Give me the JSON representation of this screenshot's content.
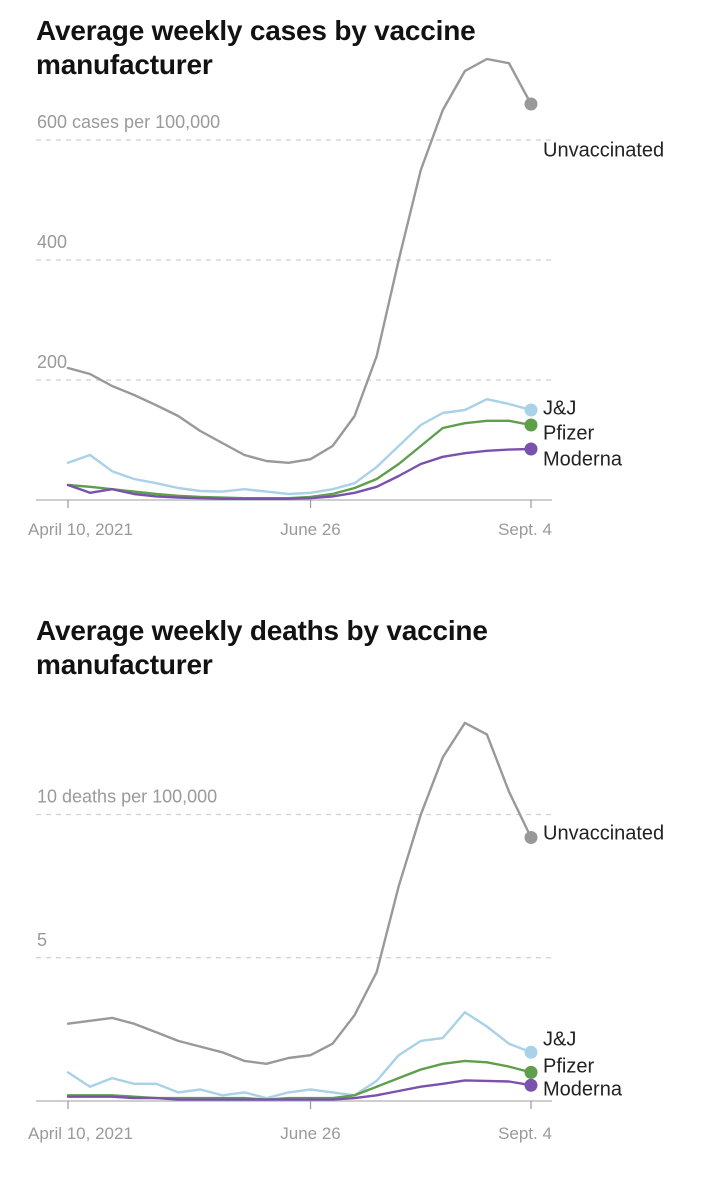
{
  "chart_data": [
    {
      "type": "line",
      "title": "Average weekly cases by vaccine manufacturer",
      "ylim": [
        0,
        700
      ],
      "y_ticks": [
        {
          "value": 0,
          "label": ""
        },
        {
          "value": 200,
          "label": "200"
        },
        {
          "value": 400,
          "label": "400"
        },
        {
          "value": 600,
          "label": "600 cases per 100,000"
        }
      ],
      "x_ticks": [
        {
          "week": 0,
          "label": "April 10, 2021"
        },
        {
          "week": 11,
          "label": "June 26"
        },
        {
          "week": 21,
          "label": "Sept. 4"
        }
      ],
      "x": [
        "April 10, 2021",
        "April 17, 2021",
        "April 24, 2021",
        "May 1, 2021",
        "May 8, 2021",
        "May 15, 2021",
        "May 22, 2021",
        "May 29, 2021",
        "June 5, 2021",
        "June 12, 2021",
        "June 19, 2021",
        "June 26, 2021",
        "July 3, 2021",
        "July 10, 2021",
        "July 17, 2021",
        "July 24, 2021",
        "July 31, 2021",
        "Aug. 7, 2021",
        "Aug. 14, 2021",
        "Aug. 21, 2021",
        "Aug. 28, 2021",
        "Sept. 4, 2021"
      ],
      "grid": "dashed horizontal",
      "series": [
        {
          "name": "Unvaccinated",
          "color": "#999999",
          "values": [
            220,
            210,
            190,
            175,
            158,
            140,
            115,
            95,
            75,
            65,
            62,
            68,
            90,
            140,
            240,
            400,
            550,
            650,
            715,
            735,
            728,
            660
          ]
        },
        {
          "name": "J&J",
          "color": "#a9d1e8",
          "values": [
            62,
            75,
            48,
            35,
            28,
            20,
            15,
            14,
            18,
            14,
            10,
            12,
            18,
            28,
            55,
            90,
            125,
            145,
            150,
            168,
            160,
            150
          ]
        },
        {
          "name": "Pfizer",
          "color": "#5f9e4b",
          "values": [
            25,
            22,
            18,
            14,
            10,
            7,
            5,
            4,
            3,
            3,
            3,
            5,
            10,
            20,
            35,
            60,
            90,
            120,
            128,
            132,
            132,
            125
          ]
        },
        {
          "name": "Moderna",
          "color": "#7a52ad",
          "values": [
            25,
            12,
            18,
            10,
            6,
            4,
            3,
            2,
            2,
            2,
            2,
            3,
            6,
            12,
            22,
            40,
            60,
            72,
            78,
            82,
            84,
            85
          ]
        }
      ]
    },
    {
      "type": "line",
      "title": "Average weekly deaths by vaccine manufacturer",
      "ylim": [
        0,
        14
      ],
      "y_ticks": [
        {
          "value": 0,
          "label": ""
        },
        {
          "value": 5,
          "label": "5"
        },
        {
          "value": 10,
          "label": "10 deaths per 100,000"
        }
      ],
      "x_ticks": [
        {
          "week": 0,
          "label": "April 10, 2021"
        },
        {
          "week": 11,
          "label": "June 26"
        },
        {
          "week": 21,
          "label": "Sept. 4"
        }
      ],
      "x": [
        "April 10, 2021",
        "April 17, 2021",
        "April 24, 2021",
        "May 1, 2021",
        "May 8, 2021",
        "May 15, 2021",
        "May 22, 2021",
        "May 29, 2021",
        "June 5, 2021",
        "June 12, 2021",
        "June 19, 2021",
        "June 26, 2021",
        "July 3, 2021",
        "July 10, 2021",
        "July 17, 2021",
        "July 24, 2021",
        "July 31, 2021",
        "Aug. 7, 2021",
        "Aug. 14, 2021",
        "Aug. 21, 2021",
        "Aug. 28, 2021",
        "Sept. 4, 2021"
      ],
      "grid": "dashed horizontal",
      "series": [
        {
          "name": "Unvaccinated",
          "color": "#999999",
          "values": [
            2.7,
            2.8,
            2.9,
            2.7,
            2.4,
            2.1,
            1.9,
            1.7,
            1.4,
            1.3,
            1.5,
            1.6,
            2.0,
            3.0,
            4.5,
            7.5,
            10.0,
            12.0,
            13.2,
            12.8,
            10.8,
            9.2
          ]
        },
        {
          "name": "J&J",
          "color": "#a9d1e8",
          "values": [
            1.0,
            0.5,
            0.8,
            0.6,
            0.6,
            0.3,
            0.4,
            0.2,
            0.3,
            0.1,
            0.3,
            0.4,
            0.3,
            0.2,
            0.7,
            1.6,
            2.1,
            2.2,
            3.1,
            2.6,
            2.0,
            1.7
          ]
        },
        {
          "name": "Pfizer",
          "color": "#5f9e4b",
          "values": [
            0.2,
            0.2,
            0.2,
            0.15,
            0.1,
            0.1,
            0.1,
            0.1,
            0.1,
            0.05,
            0.1,
            0.1,
            0.1,
            0.2,
            0.5,
            0.8,
            1.1,
            1.3,
            1.4,
            1.35,
            1.2,
            1.0
          ]
        },
        {
          "name": "Moderna",
          "color": "#7a52ad",
          "values": [
            0.15,
            0.15,
            0.15,
            0.1,
            0.1,
            0.05,
            0.05,
            0.05,
            0.05,
            0.05,
            0.05,
            0.05,
            0.05,
            0.1,
            0.2,
            0.35,
            0.5,
            0.6,
            0.72,
            0.7,
            0.68,
            0.55
          ]
        }
      ]
    }
  ]
}
